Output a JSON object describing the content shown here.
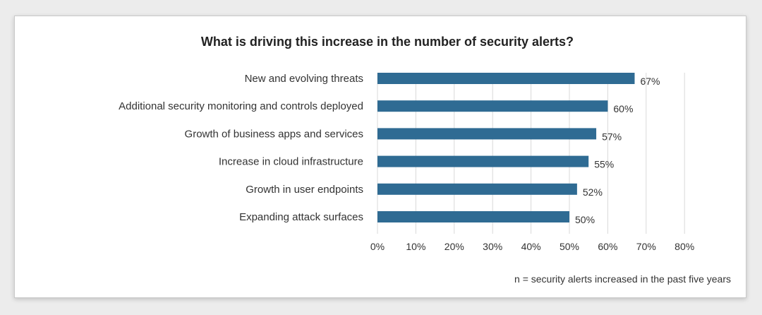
{
  "chart_data": {
    "type": "bar",
    "orientation": "horizontal",
    "title": "What is driving this increase in the number of security alerts?",
    "categories": [
      "New and evolving threats",
      "Additional security monitoring and controls deployed",
      "Growth of business apps and services",
      "Increase in cloud infrastructure",
      "Growth in user endpoints",
      "Expanding attack surfaces"
    ],
    "values": [
      67,
      60,
      57,
      55,
      52,
      50
    ],
    "data_labels": [
      "67%",
      "60%",
      "57%",
      "55%",
      "52%",
      "50%"
    ],
    "x_ticks": [
      "0%",
      "10%",
      "20%",
      "30%",
      "40%",
      "50%",
      "60%",
      "70%",
      "80%"
    ],
    "xlim": [
      0,
      80
    ],
    "grid": true,
    "note": "n = security alerts increased in the past five years",
    "colors": {
      "bar": "#2f6b93",
      "grid": "#d9d9d9",
      "text": "#333333"
    }
  }
}
